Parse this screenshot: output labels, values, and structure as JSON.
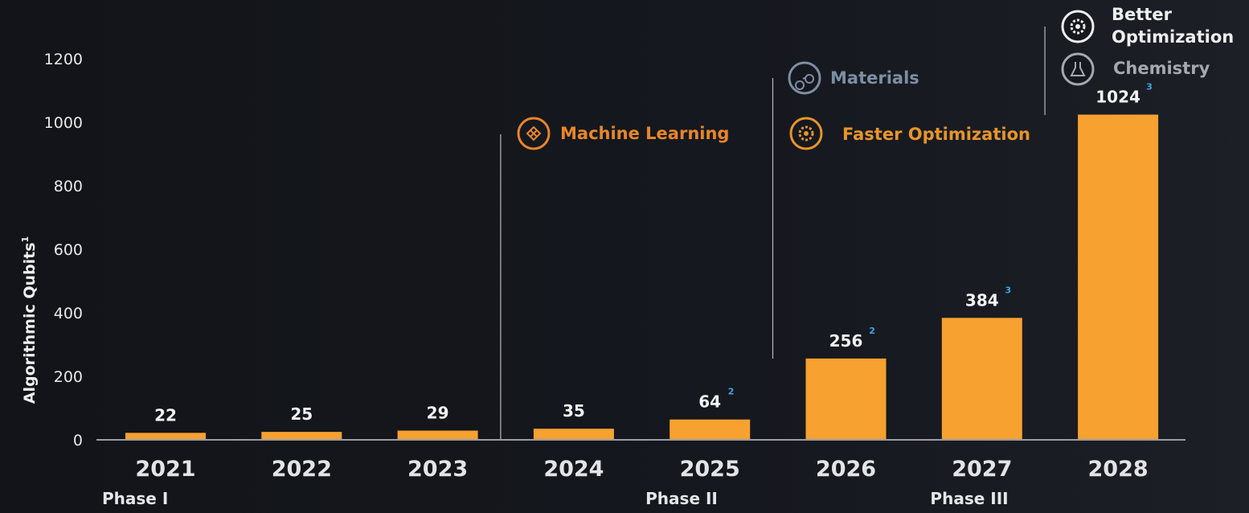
{
  "colors": {
    "bar": "#f7a130",
    "axis": "#9a9ca2",
    "machine_learning": "#e8852a",
    "materials": "#7d8ea3",
    "faster_optimization": "#e8942a",
    "better_optimization": "#eeeeef",
    "chemistry": "#a5a8ad",
    "superscript": "#3aa7e6"
  },
  "chart_data": {
    "type": "bar",
    "title": "",
    "xlabel": "",
    "ylabel": "Algorithmic Qubits",
    "ylabel_sup": "1",
    "ylim": [
      0,
      1300
    ],
    "yticks": [
      0,
      200,
      400,
      600,
      800,
      1000,
      1200
    ],
    "grid": false,
    "categories": [
      "2021",
      "2022",
      "2023",
      "2024",
      "2025",
      "2026",
      "2027",
      "2028"
    ],
    "values": [
      22,
      25,
      29,
      35,
      64,
      256,
      384,
      1024
    ],
    "value_labels": [
      "22",
      "25",
      "29",
      "35",
      "64",
      "256",
      "384",
      "1024"
    ],
    "value_superscripts": [
      "",
      "",
      "",
      "",
      "2",
      "2",
      "3",
      "3"
    ],
    "phases": [
      {
        "label": "Phase I",
        "category": "2021"
      },
      {
        "label": "Phase II",
        "category": "2025"
      },
      {
        "label": "Phase III",
        "category": "2027"
      }
    ],
    "annotations": [
      {
        "label": "Machine Learning",
        "category": "2024",
        "icon": "network-icon",
        "color_key": "machine_learning"
      },
      {
        "label": "Materials",
        "category": "2026",
        "icon": "molecule-icon",
        "color_key": "materials"
      },
      {
        "label": "Faster Optimization",
        "category": "2026",
        "icon": "gear-clock-icon",
        "color_key": "faster_optimization"
      },
      {
        "label": "Better Optimization",
        "category": "2028",
        "icon": "gear-star-icon",
        "color_key": "better_optimization"
      },
      {
        "label": "Chemistry",
        "category": "2028",
        "icon": "flask-icon",
        "color_key": "chemistry"
      }
    ]
  }
}
